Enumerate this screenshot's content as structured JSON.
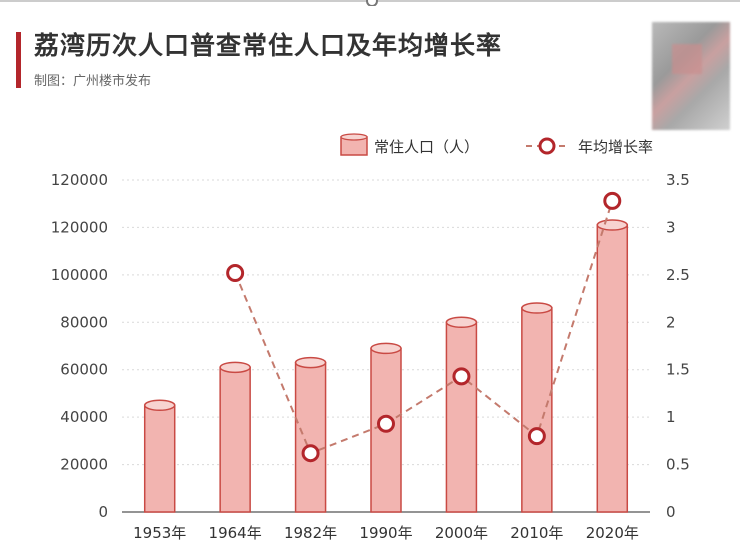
{
  "header": {
    "title": "荔湾历次人口普查常住人口及年均增长率",
    "subtitle": "制图：广州楼市发布"
  },
  "colors": {
    "accent": "#b3262b",
    "bar_fill": "#f2b4b0",
    "bar_stroke": "#c94a44",
    "line": "#c47a6d",
    "marker": "#b3262b"
  },
  "chart_data": {
    "type": "bar",
    "categories": [
      "1953年",
      "1964年",
      "1982年",
      "1990年",
      "2000年",
      "2010年",
      "2020年"
    ],
    "series": [
      {
        "name": "常住人口（人）",
        "type": "bar",
        "axis": "left",
        "values": [
          45000,
          61000,
          63000,
          69000,
          80000,
          86000,
          121000
        ]
      },
      {
        "name": "年均增长率",
        "type": "line",
        "axis": "right",
        "values": [
          null,
          2.52,
          0.62,
          0.93,
          1.43,
          0.8,
          3.28
        ]
      }
    ],
    "y_left": {
      "ticks": [
        "0",
        "20000",
        "40000",
        "60000",
        "80000",
        "100000",
        "120000",
        "120000"
      ],
      "min": 0,
      "max": 140000
    },
    "y_right": {
      "ticks": [
        "0",
        "0.5",
        "1",
        "1.5",
        "2",
        "2.5",
        "3",
        "3.5"
      ],
      "min": 0,
      "max": 3.5
    },
    "legend_position": "top-right",
    "grid": true
  }
}
